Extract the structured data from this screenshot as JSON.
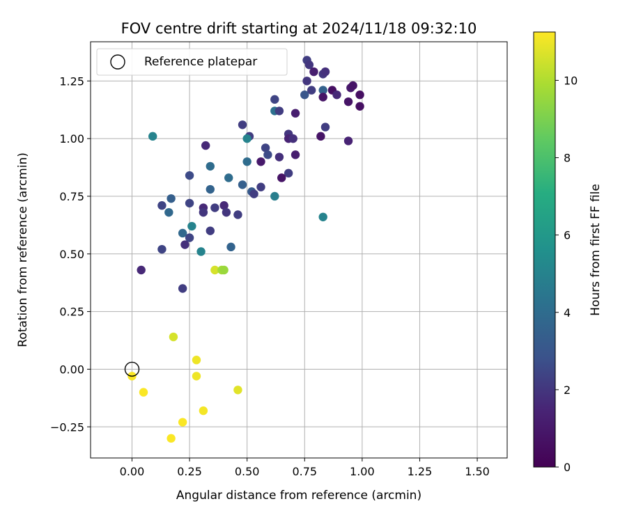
{
  "chart_data": {
    "type": "scatter",
    "title": "FOV centre drift starting at 2024/11/18 09:32:10",
    "xlabel": "Angular distance from reference (arcmin)",
    "ylabel": "Rotation from reference (arcmin)",
    "xlim": [
      -0.18,
      1.63
    ],
    "ylim": [
      -0.385,
      1.42
    ],
    "xticks": [
      0.0,
      0.25,
      0.5,
      0.75,
      1.0,
      1.25,
      1.5
    ],
    "yticks": [
      -0.25,
      0.0,
      0.25,
      0.5,
      0.75,
      1.0,
      1.25
    ],
    "xtick_labels": [
      "0.00",
      "0.25",
      "0.50",
      "0.75",
      "1.00",
      "1.25",
      "1.50"
    ],
    "ytick_labels": [
      "−0.25",
      "0.00",
      "0.25",
      "0.50",
      "0.75",
      "1.00",
      "1.25"
    ],
    "grid": true,
    "colormap": "viridis",
    "legend": {
      "position": "top-left",
      "entries": [
        "Reference platepar"
      ]
    },
    "reference_point": {
      "x": 0.0,
      "y": 0.0
    },
    "colorbar": {
      "label": "Hours from first FF file",
      "range": [
        0,
        11.25
      ],
      "ticks": [
        0,
        2,
        4,
        6,
        8,
        10
      ],
      "tick_labels": [
        "0",
        "2",
        "4",
        "6",
        "8",
        "10"
      ]
    },
    "points": [
      {
        "x": 0.76,
        "y": 1.34,
        "c": 2.2
      },
      {
        "x": 0.77,
        "y": 1.32,
        "c": 2.0
      },
      {
        "x": 0.79,
        "y": 1.29,
        "c": 1.2
      },
      {
        "x": 0.83,
        "y": 1.28,
        "c": 2.0
      },
      {
        "x": 0.84,
        "y": 1.29,
        "c": 1.8
      },
      {
        "x": 0.76,
        "y": 1.25,
        "c": 2.0
      },
      {
        "x": 0.95,
        "y": 1.22,
        "c": 1.0
      },
      {
        "x": 0.96,
        "y": 1.23,
        "c": 0.8
      },
      {
        "x": 0.87,
        "y": 1.21,
        "c": 0.6
      },
      {
        "x": 0.83,
        "y": 1.21,
        "c": 3.5
      },
      {
        "x": 0.78,
        "y": 1.21,
        "c": 2.2
      },
      {
        "x": 0.75,
        "y": 1.19,
        "c": 3.0
      },
      {
        "x": 0.89,
        "y": 1.19,
        "c": 1.6
      },
      {
        "x": 0.99,
        "y": 1.19,
        "c": 0.6
      },
      {
        "x": 0.83,
        "y": 1.18,
        "c": 0.8
      },
      {
        "x": 0.94,
        "y": 1.16,
        "c": 0.8
      },
      {
        "x": 0.99,
        "y": 1.14,
        "c": 0.6
      },
      {
        "x": 0.62,
        "y": 1.17,
        "c": 2.4
      },
      {
        "x": 0.62,
        "y": 1.12,
        "c": 4.2
      },
      {
        "x": 0.64,
        "y": 1.12,
        "c": 2.2
      },
      {
        "x": 0.71,
        "y": 1.11,
        "c": 1.2
      },
      {
        "x": 0.48,
        "y": 1.06,
        "c": 2.2
      },
      {
        "x": 0.84,
        "y": 1.05,
        "c": 2.2
      },
      {
        "x": 0.82,
        "y": 1.01,
        "c": 0.8
      },
      {
        "x": 0.51,
        "y": 1.01,
        "c": 2.2
      },
      {
        "x": 0.5,
        "y": 1.0,
        "c": 5.0
      },
      {
        "x": 0.68,
        "y": 1.02,
        "c": 2.0
      },
      {
        "x": 0.68,
        "y": 1.0,
        "c": 1.4
      },
      {
        "x": 0.7,
        "y": 1.0,
        "c": 1.8
      },
      {
        "x": 0.94,
        "y": 0.99,
        "c": 1.4
      },
      {
        "x": 0.09,
        "y": 1.01,
        "c": 5.0
      },
      {
        "x": 0.32,
        "y": 0.97,
        "c": 1.6
      },
      {
        "x": 0.58,
        "y": 0.96,
        "c": 2.4
      },
      {
        "x": 0.59,
        "y": 0.93,
        "c": 2.6
      },
      {
        "x": 0.71,
        "y": 0.93,
        "c": 1.2
      },
      {
        "x": 0.64,
        "y": 0.92,
        "c": 1.8
      },
      {
        "x": 0.56,
        "y": 0.9,
        "c": 1.0
      },
      {
        "x": 0.5,
        "y": 0.9,
        "c": 4.0
      },
      {
        "x": 0.34,
        "y": 0.88,
        "c": 4.0
      },
      {
        "x": 0.25,
        "y": 0.84,
        "c": 2.6
      },
      {
        "x": 0.42,
        "y": 0.83,
        "c": 4.0
      },
      {
        "x": 0.68,
        "y": 0.85,
        "c": 2.2
      },
      {
        "x": 0.65,
        "y": 0.83,
        "c": 0.8
      },
      {
        "x": 0.34,
        "y": 0.78,
        "c": 3.6
      },
      {
        "x": 0.48,
        "y": 0.8,
        "c": 3.4
      },
      {
        "x": 0.56,
        "y": 0.79,
        "c": 2.2
      },
      {
        "x": 0.52,
        "y": 0.77,
        "c": 3.2
      },
      {
        "x": 0.53,
        "y": 0.76,
        "c": 2.2
      },
      {
        "x": 0.62,
        "y": 0.75,
        "c": 4.8
      },
      {
        "x": 0.17,
        "y": 0.74,
        "c": 3.4
      },
      {
        "x": 0.13,
        "y": 0.71,
        "c": 2.4
      },
      {
        "x": 0.25,
        "y": 0.72,
        "c": 2.4
      },
      {
        "x": 0.16,
        "y": 0.68,
        "c": 3.8
      },
      {
        "x": 0.31,
        "y": 0.7,
        "c": 1.6
      },
      {
        "x": 0.36,
        "y": 0.7,
        "c": 2.2
      },
      {
        "x": 0.4,
        "y": 0.71,
        "c": 1.6
      },
      {
        "x": 0.31,
        "y": 0.68,
        "c": 2.0
      },
      {
        "x": 0.41,
        "y": 0.68,
        "c": 2.0
      },
      {
        "x": 0.46,
        "y": 0.67,
        "c": 2.2
      },
      {
        "x": 0.83,
        "y": 0.66,
        "c": 5.0
      },
      {
        "x": 0.26,
        "y": 0.62,
        "c": 5.0
      },
      {
        "x": 0.34,
        "y": 0.6,
        "c": 2.2
      },
      {
        "x": 0.22,
        "y": 0.59,
        "c": 3.8
      },
      {
        "x": 0.25,
        "y": 0.57,
        "c": 2.4
      },
      {
        "x": 0.23,
        "y": 0.54,
        "c": 1.8
      },
      {
        "x": 0.13,
        "y": 0.52,
        "c": 2.4
      },
      {
        "x": 0.3,
        "y": 0.51,
        "c": 5.0
      },
      {
        "x": 0.43,
        "y": 0.53,
        "c": 3.6
      },
      {
        "x": 0.04,
        "y": 0.43,
        "c": 1.6
      },
      {
        "x": 0.36,
        "y": 0.43,
        "c": 10.6
      },
      {
        "x": 0.39,
        "y": 0.43,
        "c": 9.8
      },
      {
        "x": 0.4,
        "y": 0.43,
        "c": 9.6
      },
      {
        "x": 0.22,
        "y": 0.35,
        "c": 2.2
      },
      {
        "x": 0.18,
        "y": 0.14,
        "c": 10.6
      },
      {
        "x": 0.28,
        "y": 0.04,
        "c": 11.0
      },
      {
        "x": 0.0,
        "y": -0.03,
        "c": 11.2
      },
      {
        "x": 0.28,
        "y": -0.03,
        "c": 11.0
      },
      {
        "x": 0.05,
        "y": -0.1,
        "c": 11.2
      },
      {
        "x": 0.46,
        "y": -0.09,
        "c": 10.8
      },
      {
        "x": 0.31,
        "y": -0.18,
        "c": 11.1
      },
      {
        "x": 0.22,
        "y": -0.23,
        "c": 11.2
      },
      {
        "x": 0.17,
        "y": -0.3,
        "c": 11.2
      }
    ]
  }
}
